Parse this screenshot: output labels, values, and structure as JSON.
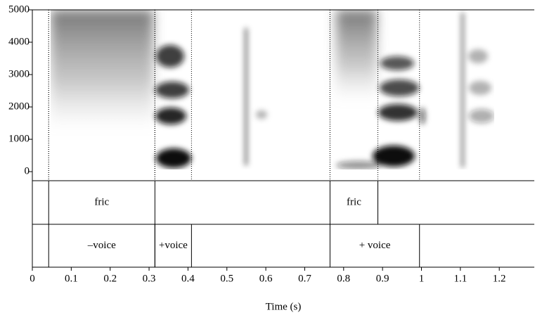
{
  "chart_data": {
    "type": "spectrogram",
    "x_label": "Time (s)",
    "xlim": [
      0,
      1.29
    ],
    "xticks": [
      0,
      0.1,
      0.2,
      0.3,
      0.4,
      0.5,
      0.6,
      0.7,
      0.8,
      0.9,
      1,
      1.1,
      1.2
    ],
    "ylim": [
      -280,
      5000
    ],
    "yticks": [
      0,
      1000,
      2000,
      3000,
      4000,
      5000
    ],
    "tiers": [
      {
        "intervals": [
          {
            "start": 0.042,
            "end": 0.315,
            "label": "fric"
          },
          {
            "start": 0.765,
            "end": 0.888,
            "label": "fric"
          }
        ]
      },
      {
        "intervals": [
          {
            "start": 0.042,
            "end": 0.315,
            "label": "–voice"
          },
          {
            "start": 0.315,
            "end": 0.409,
            "label": "+voice"
          },
          {
            "start": 0.765,
            "end": 0.995,
            "label": "+ voice"
          }
        ]
      }
    ]
  }
}
